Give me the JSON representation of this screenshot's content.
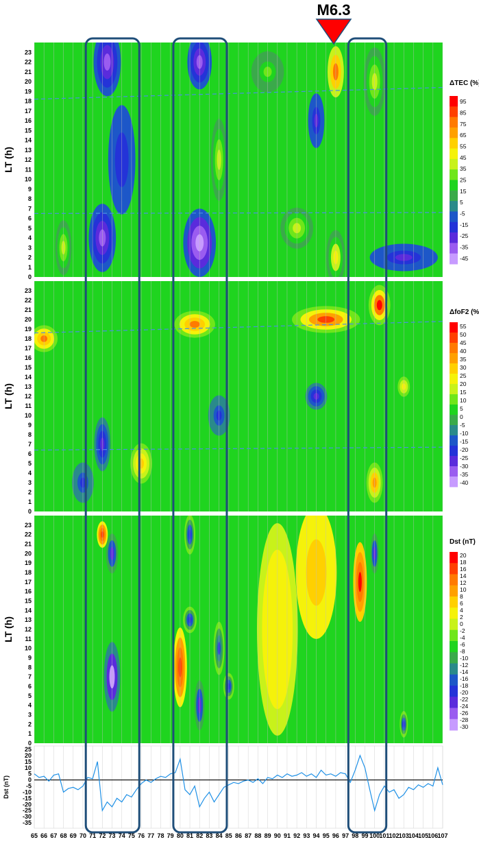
{
  "event_marker": {
    "label": "M6.3",
    "day": 96,
    "color": "#ff0000"
  },
  "chart_data": [
    {
      "type": "heatmap",
      "ylabel": "LT (h)",
      "colorbar_title": "ΔTEC (%)",
      "colorbar_ticks": [
        "95",
        "85",
        "75",
        "65",
        "55",
        "45",
        "35",
        "25",
        "15",
        "5",
        "-5",
        "-15",
        "-25",
        "-35",
        "-45"
      ],
      "ylim": [
        0,
        23
      ],
      "xlim": [
        65,
        107
      ],
      "zlim": [
        -45,
        95
      ],
      "colors": [
        "#c79bff",
        "#9a5cf0",
        "#5a2bdc",
        "#2433d8",
        "#1d57c8",
        "#2a8a8a",
        "#3aaa4a",
        "#1fd41f",
        "#6fe61a",
        "#c8f21a",
        "#f5f20a",
        "#ffd000",
        "#ffa000",
        "#ff7a00",
        "#ff4000",
        "#ff0000"
      ],
      "anomalies": [
        {
          "x": 72.5,
          "y": 22,
          "v": -30,
          "sx": 1.0,
          "sy": 2.5
        },
        {
          "x": 72,
          "y": 4,
          "v": -35,
          "sx": 1.0,
          "sy": 2.5
        },
        {
          "x": 74,
          "y": 12,
          "v": -15,
          "sx": 1.0,
          "sy": 4
        },
        {
          "x": 82,
          "y": 22,
          "v": -30,
          "sx": 0.9,
          "sy": 2.0
        },
        {
          "x": 82,
          "y": 3.5,
          "v": -40,
          "sx": 1.2,
          "sy": 2.5
        },
        {
          "x": 84,
          "y": 12,
          "v": 40,
          "sx": 0.6,
          "sy": 3
        },
        {
          "x": 96,
          "y": 21,
          "v": 75,
          "sx": 0.8,
          "sy": 2.5
        },
        {
          "x": 96,
          "y": 2,
          "v": 45,
          "sx": 0.7,
          "sy": 2
        },
        {
          "x": 100,
          "y": 20,
          "v": 40,
          "sx": 0.8,
          "sy": 2.5
        },
        {
          "x": 92,
          "y": 5,
          "v": 35,
          "sx": 1.2,
          "sy": 1.5
        },
        {
          "x": 89,
          "y": 21,
          "v": 30,
          "sx": 1.2,
          "sy": 1.5
        },
        {
          "x": 68,
          "y": 3,
          "v": 35,
          "sx": 0.6,
          "sy": 2
        },
        {
          "x": 103,
          "y": 2,
          "v": -20,
          "sx": 2.5,
          "sy": 1
        },
        {
          "x": 94,
          "y": 16,
          "v": -20,
          "sx": 0.6,
          "sy": 2
        }
      ]
    },
    {
      "type": "heatmap",
      "ylabel": "LT (h)",
      "colorbar_title": "ΔfoF2 (%)",
      "colorbar_ticks": [
        "55",
        "50",
        "45",
        "40",
        "35",
        "30",
        "25",
        "20",
        "15",
        "10",
        "5",
        "0",
        "-5",
        "-10",
        "-15",
        "-20",
        "-25",
        "-30",
        "-35",
        "-40"
      ],
      "ylim": [
        0,
        23
      ],
      "xlim": [
        65,
        107
      ],
      "zlim": [
        -40,
        55
      ],
      "colors": [
        "#c79bff",
        "#9a5cf0",
        "#5a2bdc",
        "#2433d8",
        "#1d57c8",
        "#2a8a8a",
        "#3aaa4a",
        "#1fd41f",
        "#6fe61a",
        "#c8f21a",
        "#f5f20a",
        "#ffd000",
        "#ffa000",
        "#ff7a00",
        "#ff4000",
        "#ff0000"
      ],
      "anomalies": [
        {
          "x": 66,
          "y": 18,
          "v": 40,
          "sx": 1.0,
          "sy": 1
        },
        {
          "x": 81.5,
          "y": 19.5,
          "v": 40,
          "sx": 1.5,
          "sy": 1
        },
        {
          "x": 95,
          "y": 20,
          "v": 45,
          "sx": 2.5,
          "sy": 1
        },
        {
          "x": 100.5,
          "y": 21.5,
          "v": 50,
          "sx": 0.8,
          "sy": 1.5
        },
        {
          "x": 76,
          "y": 5,
          "v": 30,
          "sx": 0.8,
          "sy": 1.5
        },
        {
          "x": 72,
          "y": 7,
          "v": -25,
          "sx": 0.6,
          "sy": 2
        },
        {
          "x": 94,
          "y": 12,
          "v": -25,
          "sx": 0.8,
          "sy": 1
        },
        {
          "x": 100,
          "y": 3,
          "v": 35,
          "sx": 0.6,
          "sy": 1.5
        },
        {
          "x": 84,
          "y": 10,
          "v": -20,
          "sx": 0.8,
          "sy": 1.5
        },
        {
          "x": 70,
          "y": 3,
          "v": -20,
          "sx": 0.8,
          "sy": 1.5
        },
        {
          "x": 103,
          "y": 13,
          "v": 25,
          "sx": 0.6,
          "sy": 1
        }
      ]
    },
    {
      "type": "heatmap",
      "ylabel": "LT (h)",
      "colorbar_title": "Dst (nT)",
      "colorbar_ticks": [
        "20",
        "18",
        "16",
        "14",
        "12",
        "10",
        "8",
        "6",
        "4",
        "2",
        "0",
        "-2",
        "-4",
        "-6",
        "-8",
        "-10",
        "-12",
        "-14",
        "-16",
        "-18",
        "-20",
        "-22",
        "-24",
        "-26",
        "-28",
        "-30"
      ],
      "ylim": [
        0,
        23
      ],
      "xlim": [
        65,
        107
      ],
      "zlim": [
        -30,
        20
      ],
      "colors": [
        "#c79bff",
        "#9a5cf0",
        "#5a2bdc",
        "#2433d8",
        "#1d57c8",
        "#2a8a8a",
        "#3aaa4a",
        "#1fd41f",
        "#6fe61a",
        "#c8f21a",
        "#f5f20a",
        "#ffd000",
        "#ffa000",
        "#ff7a00",
        "#ff4000",
        "#ff0000"
      ],
      "anomalies": [
        {
          "x": 73,
          "y": 20,
          "v": -22,
          "sx": 0.6,
          "sy": 2
        },
        {
          "x": 72,
          "y": 22,
          "v": 15,
          "sx": 0.4,
          "sy": 1
        },
        {
          "x": 73,
          "y": 7,
          "v": -28,
          "sx": 0.8,
          "sy": 3.5
        },
        {
          "x": 80,
          "y": 8,
          "v": 16,
          "sx": 0.5,
          "sy": 3
        },
        {
          "x": 81,
          "y": 22,
          "v": -20,
          "sx": 0.4,
          "sy": 1.5
        },
        {
          "x": 81,
          "y": 13,
          "v": -20,
          "sx": 0.5,
          "sy": 1
        },
        {
          "x": 82,
          "y": 4,
          "v": -22,
          "sx": 0.5,
          "sy": 2.5
        },
        {
          "x": 84,
          "y": 10,
          "v": -18,
          "sx": 0.4,
          "sy": 2
        },
        {
          "x": 85,
          "y": 6,
          "v": -20,
          "sx": 0.4,
          "sy": 1
        },
        {
          "x": 98.5,
          "y": 17,
          "v": 18,
          "sx": 0.5,
          "sy": 3
        },
        {
          "x": 100,
          "y": 20,
          "v": -22,
          "sx": 0.4,
          "sy": 2
        },
        {
          "x": 103,
          "y": 2,
          "v": -20,
          "sx": 0.3,
          "sy": 1
        },
        {
          "x": 94,
          "y": 18,
          "v": 6,
          "sx": 1.5,
          "sy": 5
        },
        {
          "x": 90,
          "y": 12,
          "v": 4,
          "sx": 1.5,
          "sy": 8
        }
      ]
    },
    {
      "type": "line",
      "ylabel": "Dst (nT)",
      "ylim": [
        -35,
        25
      ],
      "xlim": [
        65,
        107
      ],
      "yticks": [
        25,
        20,
        15,
        10,
        5,
        0,
        -5,
        -10,
        -15,
        -20,
        -25,
        -30,
        -35
      ],
      "xticks": [
        65,
        66,
        67,
        68,
        69,
        70,
        71,
        72,
        73,
        74,
        75,
        76,
        77,
        78,
        79,
        80,
        81,
        82,
        83,
        84,
        85,
        86,
        87,
        88,
        89,
        90,
        91,
        92,
        93,
        94,
        95,
        96,
        97,
        98,
        99,
        100,
        101,
        102,
        103,
        104,
        105,
        106,
        107
      ],
      "color": "#1e90e6",
      "series": [
        {
          "values": [
            [
              65,
              5
            ],
            [
              65.5,
              2
            ],
            [
              66,
              3
            ],
            [
              66.5,
              -1
            ],
            [
              67,
              4
            ],
            [
              67.5,
              5
            ],
            [
              68,
              -10
            ],
            [
              68.5,
              -7
            ],
            [
              69,
              -6
            ],
            [
              69.5,
              -8
            ],
            [
              70,
              -5
            ],
            [
              70.5,
              2
            ],
            [
              71,
              1
            ],
            [
              71.5,
              15
            ],
            [
              72,
              -25
            ],
            [
              72.5,
              -18
            ],
            [
              73,
              -22
            ],
            [
              73.5,
              -15
            ],
            [
              74,
              -18
            ],
            [
              74.5,
              -12
            ],
            [
              75,
              -14
            ],
            [
              75.5,
              -8
            ],
            [
              76,
              -3
            ],
            [
              76.5,
              0
            ],
            [
              77,
              -2
            ],
            [
              77.5,
              1
            ],
            [
              78,
              3
            ],
            [
              78.5,
              2
            ],
            [
              79,
              5
            ],
            [
              79.5,
              6
            ],
            [
              80,
              17
            ],
            [
              80.5,
              -8
            ],
            [
              81,
              -12
            ],
            [
              81.5,
              -5
            ],
            [
              82,
              -22
            ],
            [
              82.5,
              -15
            ],
            [
              83,
              -10
            ],
            [
              83.5,
              -18
            ],
            [
              84,
              -12
            ],
            [
              84.5,
              -6
            ],
            [
              85,
              -4
            ],
            [
              85.5,
              -2
            ],
            [
              86,
              -3
            ],
            [
              86.5,
              -1
            ],
            [
              87,
              0
            ],
            [
              87.5,
              -2
            ],
            [
              88,
              1
            ],
            [
              88.5,
              -3
            ],
            [
              89,
              2
            ],
            [
              89.5,
              1
            ],
            [
              90,
              4
            ],
            [
              90.5,
              2
            ],
            [
              91,
              5
            ],
            [
              91.5,
              3
            ],
            [
              92,
              4
            ],
            [
              92.5,
              6
            ],
            [
              93,
              3
            ],
            [
              93.5,
              5
            ],
            [
              94,
              2
            ],
            [
              94.5,
              8
            ],
            [
              95,
              4
            ],
            [
              95.5,
              5
            ],
            [
              96,
              3
            ],
            [
              96.5,
              6
            ],
            [
              97,
              5
            ],
            [
              97.5,
              -2
            ],
            [
              98,
              8
            ],
            [
              98.5,
              20
            ],
            [
              99,
              10
            ],
            [
              99.5,
              -8
            ],
            [
              100,
              -25
            ],
            [
              100.5,
              -12
            ],
            [
              101,
              -5
            ],
            [
              101.5,
              -10
            ],
            [
              102,
              -8
            ],
            [
              102.5,
              -15
            ],
            [
              103,
              -12
            ],
            [
              103.5,
              -6
            ],
            [
              104,
              -8
            ],
            [
              104.5,
              -4
            ],
            [
              105,
              -6
            ],
            [
              105.5,
              -3
            ],
            [
              106,
              -5
            ],
            [
              106.5,
              10
            ],
            [
              107,
              -4
            ]
          ]
        }
      ]
    }
  ]
}
